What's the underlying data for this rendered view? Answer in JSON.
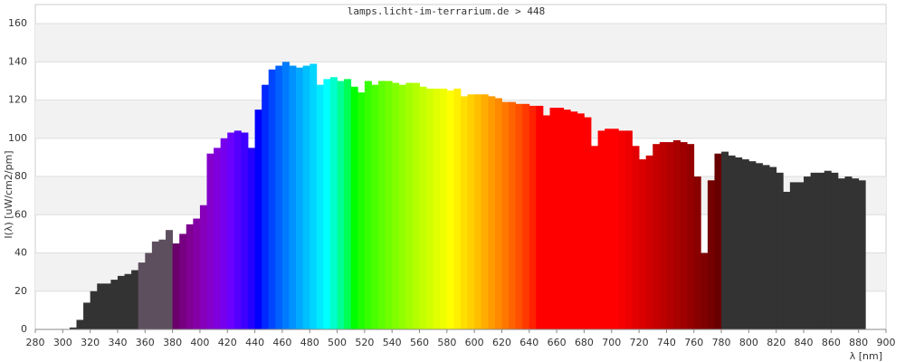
{
  "chart_data": {
    "type": "area",
    "title": "lamps.licht-im-terrarium.de > 448",
    "x_label": "λ [nm]",
    "y_label": "I(λ)  [uW/cm2/pm]",
    "x": [
      300,
      305,
      310,
      315,
      320,
      325,
      330,
      335,
      340,
      345,
      350,
      355,
      360,
      365,
      370,
      375,
      380,
      385,
      390,
      395,
      400,
      405,
      410,
      415,
      420,
      425,
      430,
      435,
      440,
      445,
      450,
      455,
      460,
      465,
      470,
      475,
      480,
      485,
      490,
      495,
      500,
      505,
      510,
      515,
      520,
      525,
      530,
      535,
      540,
      545,
      550,
      555,
      560,
      565,
      570,
      575,
      580,
      585,
      590,
      595,
      600,
      605,
      610,
      615,
      620,
      625,
      630,
      635,
      640,
      645,
      650,
      655,
      660,
      665,
      670,
      675,
      680,
      685,
      690,
      695,
      700,
      705,
      710,
      715,
      720,
      725,
      730,
      735,
      740,
      745,
      750,
      755,
      760,
      765,
      770,
      775,
      780,
      785,
      790,
      795,
      800,
      805,
      810,
      815,
      820,
      825,
      830,
      835,
      840,
      845,
      850,
      855,
      860,
      865,
      870,
      875,
      880
    ],
    "values": [
      0,
      1,
      5,
      14,
      20,
      24,
      24,
      26,
      28,
      29,
      31,
      35,
      40,
      46,
      47,
      52,
      45,
      50,
      55,
      58,
      65,
      92,
      95,
      100,
      103,
      104,
      103,
      95,
      115,
      128,
      136,
      138,
      140,
      138,
      137,
      138,
      139,
      128,
      131,
      132,
      130,
      131,
      127,
      124,
      130,
      128,
      130,
      130,
      129,
      128,
      129,
      129,
      127,
      126,
      126,
      126,
      125,
      126,
      122,
      123,
      123,
      123,
      122,
      121,
      119,
      119,
      118,
      118,
      117,
      117,
      112,
      116,
      116,
      115,
      114,
      113,
      111,
      96,
      104,
      105,
      105,
      104,
      104,
      96,
      89,
      91,
      97,
      98,
      98,
      99,
      98,
      97,
      80,
      40,
      78,
      92,
      93,
      91,
      90,
      89,
      88,
      87,
      86,
      85,
      82,
      72,
      77,
      77,
      80,
      82,
      82,
      83,
      82,
      79,
      80,
      79,
      78
    ],
    "xlim": [
      280,
      900
    ],
    "ylim": [
      0,
      170
    ],
    "xticks": [
      280,
      300,
      320,
      340,
      360,
      380,
      400,
      420,
      440,
      460,
      480,
      500,
      520,
      540,
      560,
      580,
      600,
      620,
      640,
      660,
      680,
      700,
      720,
      740,
      760,
      780,
      800,
      820,
      840,
      860,
      880,
      900
    ],
    "yticks": [
      0,
      20,
      40,
      60,
      80,
      100,
      120,
      140,
      160
    ],
    "grid": true
  }
}
